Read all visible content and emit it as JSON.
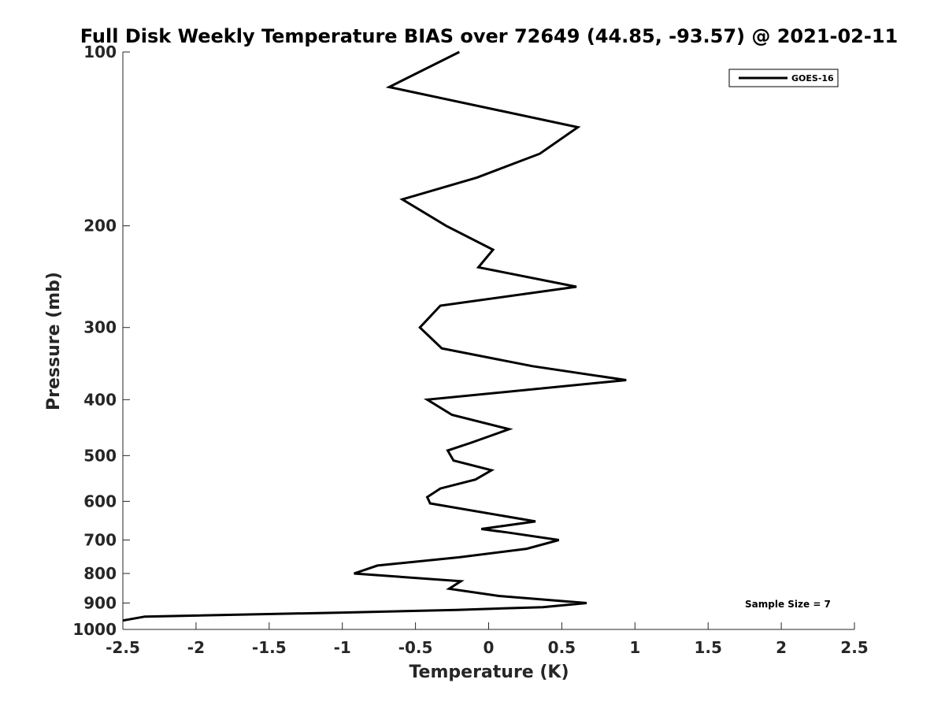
{
  "chart_data": {
    "type": "line",
    "title": "Full Disk Weekly Temperature BIAS over 72649 (44.85, -93.57) @ 2021-02-11",
    "xlabel": "Temperature (K)",
    "ylabel": "Pressure (mb)",
    "xlim": [
      -2.5,
      2.5
    ],
    "ylim": [
      1000,
      100
    ],
    "y_scale": "log",
    "y_reversed": true,
    "x_ticks": [
      -2.5,
      -2,
      -1.5,
      -1,
      -0.5,
      0,
      0.5,
      1,
      1.5,
      2,
      2.5
    ],
    "x_tick_labels": [
      "-2.5",
      "-2",
      "-1.5",
      "-1",
      "-0.5",
      "0",
      "0.5",
      "1",
      "1.5",
      "2",
      "2.5"
    ],
    "y_ticks": [
      100,
      200,
      300,
      400,
      500,
      600,
      700,
      800,
      900,
      1000
    ],
    "y_tick_labels": [
      "100",
      "200",
      "300",
      "400",
      "500",
      "600",
      "700",
      "800",
      "900",
      "1000"
    ],
    "grid": false,
    "legend_position": "top-right",
    "line_color": "#000000",
    "series": [
      {
        "name": "GOES-16",
        "points": [
          [
            -0.2,
            100
          ],
          [
            -0.68,
            115
          ],
          [
            0.61,
            135
          ],
          [
            0.35,
            150
          ],
          [
            -0.08,
            165
          ],
          [
            -0.59,
            180
          ],
          [
            -0.29,
            200
          ],
          [
            0.03,
            220
          ],
          [
            -0.07,
            236
          ],
          [
            0.6,
            255
          ],
          [
            -0.33,
            275
          ],
          [
            -0.47,
            300
          ],
          [
            -0.32,
            326
          ],
          [
            0.3,
            350
          ],
          [
            0.94,
            370
          ],
          [
            -0.42,
            400
          ],
          [
            -0.25,
            425
          ],
          [
            0.14,
            450
          ],
          [
            -0.12,
            475
          ],
          [
            -0.28,
            490
          ],
          [
            -0.24,
            510
          ],
          [
            0.02,
            530
          ],
          [
            -0.09,
            550
          ],
          [
            -0.33,
            570
          ],
          [
            -0.42,
            590
          ],
          [
            -0.4,
            605
          ],
          [
            0.32,
            650
          ],
          [
            -0.05,
            670
          ],
          [
            0.14,
            680
          ],
          [
            0.48,
            700
          ],
          [
            0.26,
            725
          ],
          [
            -0.2,
            750
          ],
          [
            -0.76,
            775
          ],
          [
            -0.92,
            800
          ],
          [
            -0.19,
            825
          ],
          [
            -0.27,
            850
          ],
          [
            0.07,
            875
          ],
          [
            0.67,
            900
          ],
          [
            0.37,
            915
          ],
          [
            -0.22,
            925
          ],
          [
            -1.0,
            935
          ],
          [
            -2.35,
            950
          ],
          [
            -2.5,
            965
          ]
        ]
      }
    ],
    "annotation": "Sample Size = 7"
  }
}
